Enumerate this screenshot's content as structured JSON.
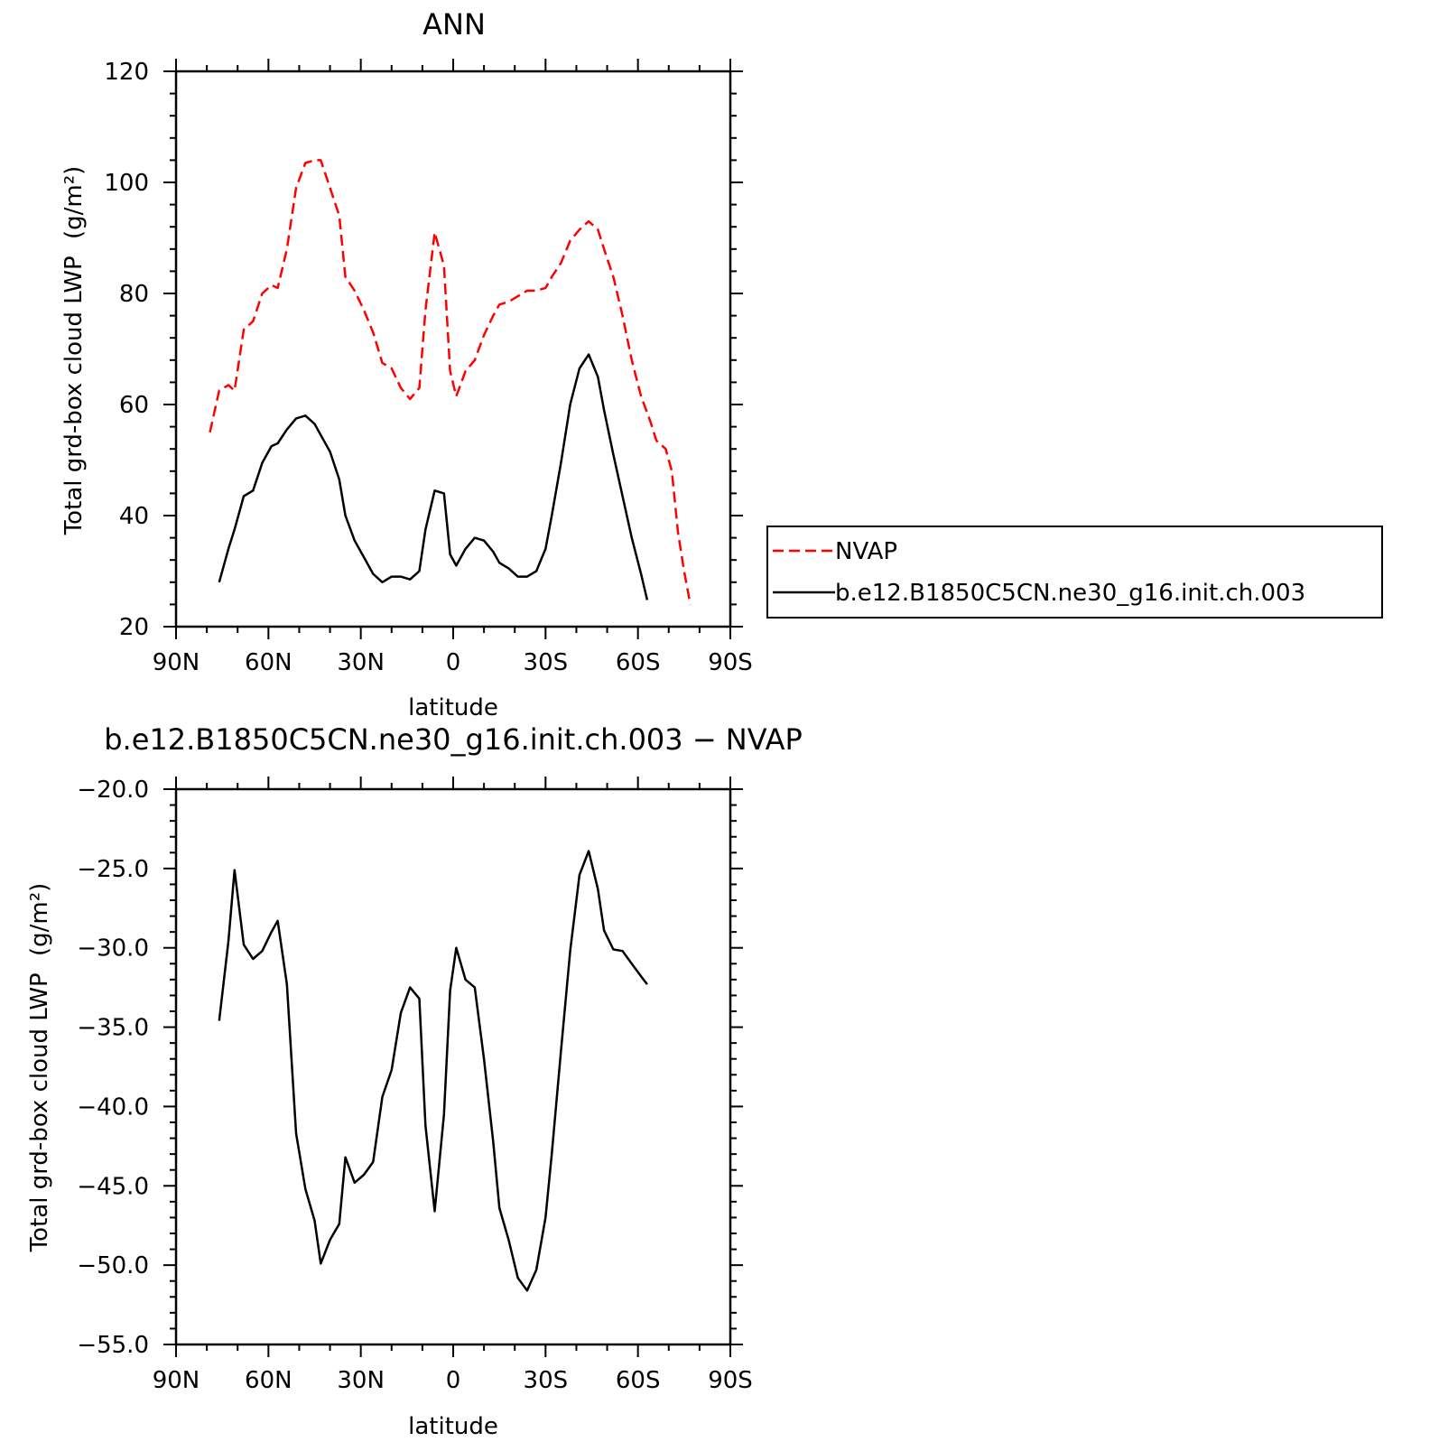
{
  "chart_data": [
    {
      "type": "line",
      "title": "ANN",
      "xlabel": "latitude",
      "ylabel": "Total grd-box cloud LWP",
      "ylabel_units": "(g/m²)",
      "xlim": [
        -90,
        90
      ],
      "ylim": [
        20,
        120
      ],
      "xticks": [
        -90,
        -60,
        -30,
        0,
        30,
        60,
        90
      ],
      "xtick_labels": [
        "90N",
        "60N",
        "30N",
        "0",
        "30S",
        "60S",
        "90S"
      ],
      "yticks": [
        20,
        40,
        60,
        80,
        100,
        120
      ],
      "ytick_labels": [
        "20",
        "40",
        "60",
        "80",
        "100",
        "120"
      ],
      "legend_placement": "right",
      "series": [
        {
          "name": "NVAP",
          "color": "#ff0000",
          "dash": "dashed",
          "points": [
            [
              -79,
              55
            ],
            [
              -76,
              62.5
            ],
            [
              -73,
              63.5
            ],
            [
              -71,
              62.5
            ],
            [
              -68,
              73.5
            ],
            [
              -65,
              75
            ],
            [
              -62,
              80
            ],
            [
              -59,
              81.5
            ],
            [
              -57,
              81
            ],
            [
              -54,
              88
            ],
            [
              -51,
              99
            ],
            [
              -48,
              103.5
            ],
            [
              -45,
              104
            ],
            [
              -43,
              104
            ],
            [
              -40,
              99
            ],
            [
              -37,
              94
            ],
            [
              -35,
              83
            ],
            [
              -32,
              80.5
            ],
            [
              -29,
              77
            ],
            [
              -26,
              73
            ],
            [
              -23,
              67.5
            ],
            [
              -20,
              66.5
            ],
            [
              -17,
              63
            ],
            [
              -14,
              61
            ],
            [
              -11,
              63
            ],
            [
              -9,
              77
            ],
            [
              -6,
              91
            ],
            [
              -3,
              85
            ],
            [
              -1,
              66
            ],
            [
              1,
              61.5
            ],
            [
              4,
              66
            ],
            [
              7,
              68
            ],
            [
              10,
              72.5
            ],
            [
              13,
              76
            ],
            [
              15,
              78
            ],
            [
              18,
              78.5
            ],
            [
              21,
              79.5
            ],
            [
              24,
              80.5
            ],
            [
              27,
              80.5
            ],
            [
              30,
              81
            ],
            [
              32,
              83
            ],
            [
              35,
              85.5
            ],
            [
              38,
              89.5
            ],
            [
              41,
              91.5
            ],
            [
              44,
              93
            ],
            [
              47,
              91.5
            ],
            [
              49,
              88
            ],
            [
              52,
              83
            ],
            [
              55,
              76
            ],
            [
              58,
              68
            ],
            [
              61,
              61.5
            ],
            [
              64,
              57
            ],
            [
              66,
              53.5
            ],
            [
              69,
              52
            ],
            [
              71,
              48
            ],
            [
              73,
              37
            ],
            [
              75,
              30
            ],
            [
              77,
              24
            ]
          ]
        },
        {
          "name": "b.e12.B1850C5CN.ne30_g16.init.ch.003",
          "color": "#000000",
          "dash": "solid",
          "points": [
            [
              -76,
              28
            ],
            [
              -73,
              34
            ],
            [
              -71,
              37.5
            ],
            [
              -68,
              43.5
            ],
            [
              -65,
              44.5
            ],
            [
              -62,
              49.5
            ],
            [
              -59,
              52.5
            ],
            [
              -57,
              53
            ],
            [
              -54,
              55.5
            ],
            [
              -51,
              57.5
            ],
            [
              -48,
              58
            ],
            [
              -45,
              56.5
            ],
            [
              -43,
              54.5
            ],
            [
              -40,
              51.5
            ],
            [
              -37,
              46.5
            ],
            [
              -35,
              40
            ],
            [
              -32,
              35.5
            ],
            [
              -29,
              32.5
            ],
            [
              -26,
              29.5
            ],
            [
              -23,
              28
            ],
            [
              -20,
              29
            ],
            [
              -17,
              29
            ],
            [
              -14,
              28.5
            ],
            [
              -11,
              30
            ],
            [
              -9,
              37.5
            ],
            [
              -6,
              44.5
            ],
            [
              -3,
              44
            ],
            [
              -1,
              33
            ],
            [
              1,
              31
            ],
            [
              4,
              34
            ],
            [
              7,
              36
            ],
            [
              10,
              35.5
            ],
            [
              13,
              33.5
            ],
            [
              15,
              31.5
            ],
            [
              18,
              30.5
            ],
            [
              21,
              29
            ],
            [
              24,
              29
            ],
            [
              27,
              30
            ],
            [
              30,
              34
            ],
            [
              32,
              40
            ],
            [
              35,
              49.5
            ],
            [
              38,
              60
            ],
            [
              41,
              66.5
            ],
            [
              44,
              69
            ],
            [
              47,
              65
            ],
            [
              49,
              59
            ],
            [
              52,
              51
            ],
            [
              55,
              43.5
            ],
            [
              58,
              36
            ],
            [
              61,
              29.5
            ],
            [
              63,
              24.8
            ]
          ]
        }
      ]
    },
    {
      "type": "line",
      "title": "b.e12.B1850C5CN.ne30_g16.init.ch.003 − NVAP",
      "xlabel": "latitude",
      "ylabel": "Total grd-box cloud LWP",
      "ylabel_units": "(g/m²)",
      "xlim": [
        -90,
        90
      ],
      "ylim": [
        -55,
        -20
      ],
      "xticks": [
        -90,
        -60,
        -30,
        0,
        30,
        60,
        90
      ],
      "xtick_labels": [
        "90N",
        "60N",
        "30N",
        "0",
        "30S",
        "60S",
        "90S"
      ],
      "yticks": [
        -55,
        -50,
        -45,
        -40,
        -35,
        -30,
        -25,
        -20
      ],
      "ytick_labels": [
        "−55.0",
        "−50.0",
        "−45.0",
        "−40.0",
        "−35.0",
        "−30.0",
        "−25.0",
        "−20.0"
      ],
      "series": [
        {
          "color": "#000000",
          "dash": "solid",
          "points": [
            [
              -76,
              -34.6
            ],
            [
              -73,
              -29.6
            ],
            [
              -71,
              -25.1
            ],
            [
              -68,
              -29.8
            ],
            [
              -65,
              -30.7
            ],
            [
              -62,
              -30.2
            ],
            [
              -59,
              -29
            ],
            [
              -57,
              -28.3
            ],
            [
              -54,
              -32.3
            ],
            [
              -51,
              -41.7
            ],
            [
              -48,
              -45.2
            ],
            [
              -45,
              -47.2
            ],
            [
              -43,
              -49.9
            ],
            [
              -40,
              -48.4
            ],
            [
              -37,
              -47.4
            ],
            [
              -35,
              -43.2
            ],
            [
              -32,
              -44.8
            ],
            [
              -29,
              -44.3
            ],
            [
              -26,
              -43.5
            ],
            [
              -23,
              -39.4
            ],
            [
              -20,
              -37.7
            ],
            [
              -17,
              -34.1
            ],
            [
              -14,
              -32.5
            ],
            [
              -11,
              -33.2
            ],
            [
              -9,
              -41.2
            ],
            [
              -6,
              -46.6
            ],
            [
              -3,
              -40.5
            ],
            [
              -1,
              -32.7
            ],
            [
              1,
              -30
            ],
            [
              4,
              -32
            ],
            [
              7,
              -32.5
            ],
            [
              10,
              -37
            ],
            [
              13,
              -42.2
            ],
            [
              15,
              -46.4
            ],
            [
              18,
              -48.4
            ],
            [
              21,
              -50.8
            ],
            [
              24,
              -51.6
            ],
            [
              27,
              -50.3
            ],
            [
              30,
              -47
            ],
            [
              32,
              -43
            ],
            [
              35,
              -36.5
            ],
            [
              38,
              -30.2
            ],
            [
              41,
              -25.4
            ],
            [
              44,
              -23.9
            ],
            [
              47,
              -26.3
            ],
            [
              49,
              -28.9
            ],
            [
              52,
              -30.1
            ],
            [
              55,
              -30.2
            ],
            [
              58,
              -31
            ],
            [
              61,
              -31.8
            ],
            [
              63,
              -32.3
            ]
          ]
        }
      ]
    }
  ]
}
